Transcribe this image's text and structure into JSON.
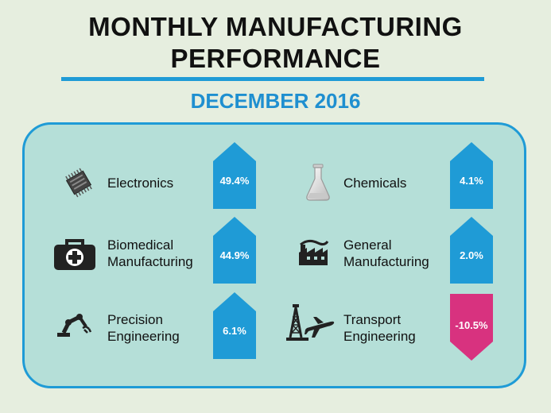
{
  "title": {
    "line1": "MONTHLY MANUFACTURING",
    "line2": "PERFORMANCE"
  },
  "subtitle": "DECEMBER 2016",
  "colors": {
    "up": "#1f9bd6",
    "down": "#d8327f",
    "accent": "#1f9bd6"
  },
  "sectors": [
    {
      "icon": "microchip-icon",
      "label": [
        "Electronics"
      ],
      "value": "49.4%",
      "direction": "up"
    },
    {
      "icon": "medical-kit-icon",
      "label": [
        "Biomedical",
        "Manufacturing"
      ],
      "value": "44.9%",
      "direction": "up"
    },
    {
      "icon": "robotic-arm-icon",
      "label": [
        "Precision",
        "Engineering"
      ],
      "value": "6.1%",
      "direction": "up"
    },
    {
      "icon": "flask-icon",
      "label": [
        "Chemicals"
      ],
      "value": "4.1%",
      "direction": "up"
    },
    {
      "icon": "factory-icon",
      "label": [
        "General",
        "Manufacturing"
      ],
      "value": "2.0%",
      "direction": "up"
    },
    {
      "icon": "oil-rig-airplane-icon",
      "label": [
        "Transport",
        "Engineering"
      ],
      "value": "-10.5%",
      "direction": "down"
    }
  ]
}
